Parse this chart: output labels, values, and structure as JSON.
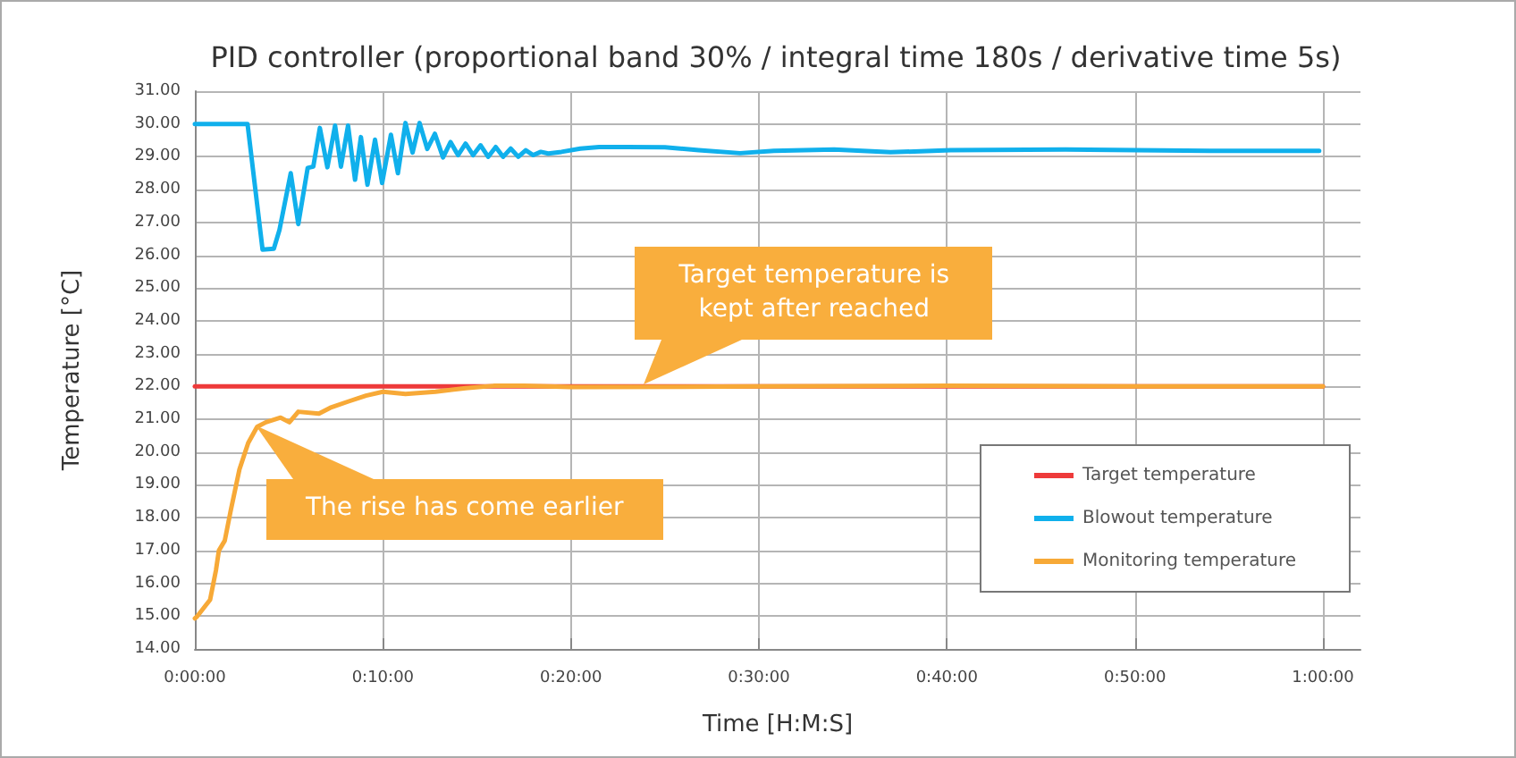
{
  "chart_data": {
    "type": "line",
    "title": "PID controller (proportional band 30% / integral time 180s / derivative time 5s)",
    "xlabel": "Time [H:M:S]",
    "ylabel": "Temperature [°C]",
    "xlim": [
      0,
      1.0333
    ],
    "xticks": [
      {
        "value": 0,
        "label": "0:00:00"
      },
      {
        "value": 0.16667,
        "label": "0:10:00"
      },
      {
        "value": 0.33333,
        "label": "0:20:00"
      },
      {
        "value": 0.5,
        "label": "0:30:00"
      },
      {
        "value": 0.66667,
        "label": "0:40:00"
      },
      {
        "value": 0.83333,
        "label": "0:50:00"
      },
      {
        "value": 1,
        "label": "1:00:00"
      }
    ],
    "ylim": [
      14,
      31
    ],
    "yticks": [
      {
        "value": 14,
        "label": "14.00"
      },
      {
        "value": 15,
        "label": "15.00"
      },
      {
        "value": 16,
        "label": "16.00"
      },
      {
        "value": 17,
        "label": "17.00"
      },
      {
        "value": 18,
        "label": "18.00"
      },
      {
        "value": 19,
        "label": "19.00"
      },
      {
        "value": 20,
        "label": "20.00"
      },
      {
        "value": 21,
        "label": "21.00"
      },
      {
        "value": 22,
        "label": "22.00"
      },
      {
        "value": 23,
        "label": "23.00"
      },
      {
        "value": 24,
        "label": "24.00"
      },
      {
        "value": 25,
        "label": "25.00"
      },
      {
        "value": 26,
        "label": "26.00"
      },
      {
        "value": 27,
        "label": "27.00"
      },
      {
        "value": 28,
        "label": "28.00"
      },
      {
        "value": 29,
        "label": "29.00"
      },
      {
        "value": 30,
        "label": "30.00"
      },
      {
        "value": 31,
        "label": "31.00"
      }
    ],
    "grid": true,
    "legend": "bottom right",
    "marker": "none",
    "line_style": "solid",
    "series": [
      {
        "name": "Target temperature",
        "color": "#ee3a3a",
        "x": [
          0,
          1
        ],
        "values": [
          22,
          22
        ]
      },
      {
        "name": "Blowout temperature",
        "color": "#10b0ec",
        "x": [
          0,
          0.0467,
          0.06,
          0.07,
          0.075,
          0.085,
          0.0917,
          0.1,
          0.105,
          0.1108,
          0.1175,
          0.1243,
          0.1295,
          0.1358,
          0.142,
          0.1472,
          0.153,
          0.1597,
          0.166,
          0.1738,
          0.18,
          0.1867,
          0.193,
          0.1992,
          0.206,
          0.2128,
          0.22,
          0.2267,
          0.2333,
          0.24,
          0.2467,
          0.2533,
          0.26,
          0.2667,
          0.2733,
          0.28,
          0.2867,
          0.2933,
          0.3,
          0.3067,
          0.3133,
          0.325,
          0.3417,
          0.3583,
          0.3833,
          0.4167,
          0.4467,
          0.4833,
          0.5133,
          0.5667,
          0.6167,
          0.67,
          0.7717,
          0.9,
          0.9967
        ],
        "values": [
          30,
          30,
          26.17,
          26.2,
          26.77,
          28.5,
          26.95,
          28.66,
          28.7,
          29.88,
          28.68,
          29.95,
          28.7,
          29.95,
          28.3,
          29.6,
          28.15,
          29.52,
          28.2,
          29.67,
          28.5,
          30.03,
          29.13,
          30.03,
          29.24,
          29.7,
          28.98,
          29.45,
          29.05,
          29.4,
          29.05,
          29.35,
          29,
          29.3,
          29,
          29.25,
          29,
          29.2,
          29.05,
          29.15,
          29.1,
          29.15,
          29.25,
          29.3,
          29.3,
          29.29,
          29.2,
          29.11,
          29.18,
          29.22,
          29.14,
          29.2,
          29.22,
          29.18,
          29.18
        ]
      },
      {
        "name": "Monitoring temperature",
        "color": "#f7a937",
        "x": [
          0,
          0.0022,
          0.0135,
          0.0187,
          0.0213,
          0.0265,
          0.0317,
          0.0395,
          0.0473,
          0.0552,
          0.063,
          0.076,
          0.0838,
          0.0917,
          0.11,
          0.12,
          0.1358,
          0.1517,
          0.1667,
          0.1867,
          0.2133,
          0.24,
          0.265,
          0.2917,
          0.3333,
          0.5,
          0.6667,
          0.8333,
          1
        ],
        "values": [
          14.93,
          15,
          15.5,
          16.4,
          17,
          17.3,
          18.2,
          19.47,
          20.28,
          20.77,
          20.91,
          21.05,
          20.91,
          21.23,
          21.17,
          21.35,
          21.54,
          21.72,
          21.84,
          21.77,
          21.84,
          21.95,
          22.02,
          22.02,
          21.98,
          22.0,
          22.02,
          22.0,
          22.0
        ]
      }
    ],
    "annotations": [
      {
        "text": "Target temperature is kept after reached",
        "x": 0.4,
        "y": 22
      },
      {
        "text": "The rise has come earlier",
        "x": 0.0552,
        "y": 20.77
      }
    ]
  }
}
